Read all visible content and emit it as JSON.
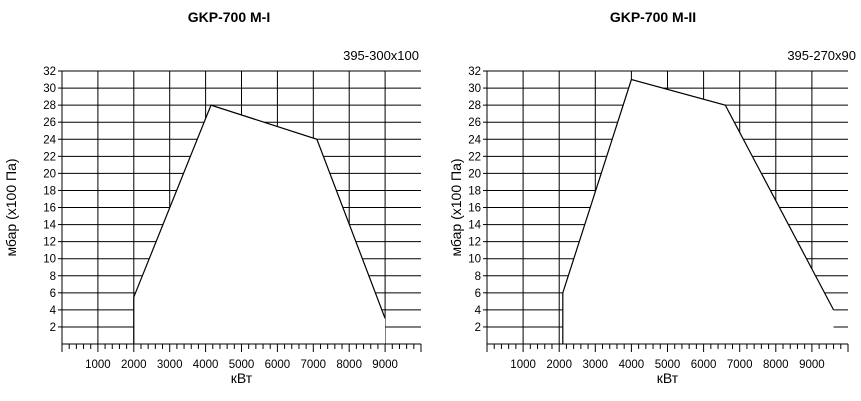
{
  "chart_data": [
    {
      "type": "area",
      "title": "GKP-700 M-I",
      "subtitle": "395-300x100",
      "xlabel": "кВт",
      "ylabel": "мбар (х100 Па)",
      "xlim": [
        0,
        10000
      ],
      "ylim": [
        0,
        32
      ],
      "xticks": [
        "1000",
        "2000",
        "3000",
        "4000",
        "5000",
        "6000",
        "7000",
        "8000",
        "9000"
      ],
      "yticks": [
        "2",
        "4",
        "6",
        "8",
        "10",
        "12",
        "14",
        "16",
        "18",
        "20",
        "22",
        "24",
        "26",
        "28",
        "30",
        "32"
      ],
      "grid": true,
      "x": [
        2000,
        2000,
        4150,
        7100,
        9000,
        9000
      ],
      "y": [
        0,
        5.5,
        28,
        24,
        3,
        0
      ]
    },
    {
      "type": "area",
      "title": "GKP-700 M-II",
      "subtitle": "395-270x90",
      "xlabel": "кВт",
      "ylabel": "мбар (х100 Па)",
      "xlim": [
        0,
        10000
      ],
      "ylim": [
        0,
        32
      ],
      "xticks": [
        "1000",
        "2000",
        "3000",
        "4000",
        "5000",
        "6000",
        "7000",
        "8000",
        "9000"
      ],
      "yticks": [
        "2",
        "4",
        "6",
        "8",
        "10",
        "12",
        "14",
        "16",
        "18",
        "20",
        "22",
        "24",
        "26",
        "28",
        "30",
        "32"
      ],
      "grid": true,
      "x": [
        2100,
        2100,
        4000,
        6600,
        9600,
        9600
      ],
      "y": [
        0,
        6,
        31,
        28,
        4,
        0
      ]
    }
  ]
}
